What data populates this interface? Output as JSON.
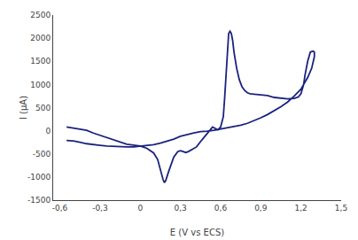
{
  "chart_data": {
    "type": "line",
    "xlabel": "E (V vs ECS)",
    "ylabel": "I (µA)",
    "color": "#1a237e",
    "grid": false,
    "xlim": [
      -0.65,
      1.5
    ],
    "ylim": [
      -1500,
      2500
    ],
    "xticks": [
      {
        "value": -0.6,
        "label": "-0,6"
      },
      {
        "value": -0.3,
        "label": "-0,3"
      },
      0,
      {
        "value": 0.3,
        "label": "0,3"
      },
      {
        "value": 0.6,
        "label": "0,6"
      },
      {
        "value": 0.9,
        "label": "0,9"
      },
      {
        "value": 1.2,
        "label": "1,2"
      },
      {
        "value": 1.5,
        "label": "1,5"
      }
    ],
    "yticks": [
      -1500,
      -1000,
      -500,
      0,
      500,
      1000,
      1500,
      2000,
      2500
    ],
    "x": [
      -0.55,
      -0.5,
      -0.45,
      -0.4,
      -0.35,
      -0.3,
      -0.25,
      -0.2,
      -0.15,
      -0.1,
      -0.05,
      0.0,
      0.05,
      0.1,
      0.13,
      0.15,
      0.17,
      0.18,
      0.19,
      0.21,
      0.23,
      0.25,
      0.28,
      0.3,
      0.32,
      0.34,
      0.36,
      0.38,
      0.42,
      0.46,
      0.5,
      0.54,
      0.56,
      0.58,
      0.6,
      0.62,
      0.63,
      0.64,
      0.65,
      0.66,
      0.67,
      0.68,
      0.69,
      0.7,
      0.72,
      0.74,
      0.76,
      0.78,
      0.8,
      0.82,
      0.85,
      0.9,
      0.95,
      1.0,
      1.05,
      1.1,
      1.15,
      1.18,
      1.2,
      1.22,
      1.23,
      1.25,
      1.27,
      1.29,
      1.3,
      1.3,
      1.28,
      1.25,
      1.22,
      1.2,
      1.15,
      1.1,
      1.05,
      1.0,
      0.95,
      0.9,
      0.85,
      0.8,
      0.75,
      0.7,
      0.65,
      0.6,
      0.55,
      0.5,
      0.45,
      0.4,
      0.35,
      0.3,
      0.25,
      0.2,
      0.15,
      0.1,
      0.05,
      0.0,
      -0.05,
      -0.1,
      -0.15,
      -0.2,
      -0.25,
      -0.3,
      -0.35,
      -0.4,
      -0.45,
      -0.5,
      -0.55
    ],
    "values": [
      80,
      60,
      30,
      10,
      -50,
      -100,
      -150,
      -200,
      -250,
      -290,
      -310,
      -330,
      -380,
      -480,
      -620,
      -850,
      -1050,
      -1120,
      -1080,
      -900,
      -720,
      -570,
      -450,
      -430,
      -450,
      -470,
      -450,
      -420,
      -350,
      -200,
      -50,
      80,
      50,
      20,
      80,
      300,
      700,
      1200,
      1800,
      2100,
      2150,
      2100,
      1950,
      1700,
      1350,
      1100,
      950,
      870,
      820,
      800,
      790,
      780,
      760,
      720,
      700,
      690,
      700,
      730,
      800,
      1000,
      1200,
      1500,
      1700,
      1720,
      1700,
      1600,
      1350,
      1150,
      1000,
      900,
      750,
      620,
      520,
      430,
      350,
      280,
      220,
      160,
      120,
      90,
      60,
      30,
      10,
      -10,
      -20,
      -50,
      -80,
      -120,
      -180,
      -230,
      -270,
      -300,
      -320,
      -340,
      -350,
      -350,
      -345,
      -340,
      -330,
      -315,
      -300,
      -280,
      -250,
      -220,
      -210
    ]
  }
}
